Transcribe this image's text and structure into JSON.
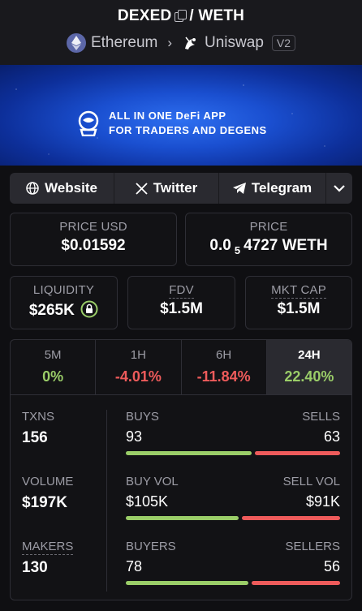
{
  "header": {
    "base": "DEXED",
    "separator": "/",
    "quote": "WETH",
    "chain": "Ethereum",
    "dex": "Uniswap",
    "version": "V2"
  },
  "banner": {
    "line1": "ALL IN ONE DeFi APP",
    "line2": "FOR TRADERS AND DEGENS"
  },
  "links": [
    {
      "label": "Website",
      "icon": "globe-icon"
    },
    {
      "label": "Twitter",
      "icon": "x-icon"
    },
    {
      "label": "Telegram",
      "icon": "telegram-icon"
    }
  ],
  "price_usd": {
    "label": "PRICE USD",
    "value": "$0.01592"
  },
  "price": {
    "label": "PRICE",
    "prefix": "0.0",
    "sub": "5",
    "suffix": "4727 WETH"
  },
  "liquidity": {
    "label": "LIQUIDITY",
    "value": "$265K"
  },
  "fdv": {
    "label": "FDV",
    "value": "$1.5M"
  },
  "mkt_cap": {
    "label": "MKT CAP",
    "value": "$1.5M"
  },
  "timeframes": [
    {
      "label": "5M",
      "value": "0%",
      "color": "#9acd68"
    },
    {
      "label": "1H",
      "value": "-4.01%",
      "color": "#ee5b5b"
    },
    {
      "label": "6H",
      "value": "-11.84%",
      "color": "#ee5b5b"
    },
    {
      "label": "24H",
      "value": "22.40%",
      "color": "#9acd68"
    }
  ],
  "stats": {
    "txns": {
      "label": "TXNS",
      "value": "156"
    },
    "volume": {
      "label": "VOLUME",
      "value": "$197K"
    },
    "makers": {
      "label": "MAKERS",
      "value": "130"
    },
    "buys": {
      "label": "BUYS",
      "value": "93",
      "sells_label": "SELLS",
      "sells_value": "63",
      "buy_ratio": 0.596
    },
    "vol": {
      "label": "BUY VOL",
      "value": "$105K",
      "sells_label": "SELL VOL",
      "sells_value": "$91K",
      "buy_ratio": 0.536
    },
    "buyers": {
      "label": "BUYERS",
      "value": "78",
      "sells_label": "SELLERS",
      "sells_value": "56",
      "buy_ratio": 0.582
    }
  }
}
